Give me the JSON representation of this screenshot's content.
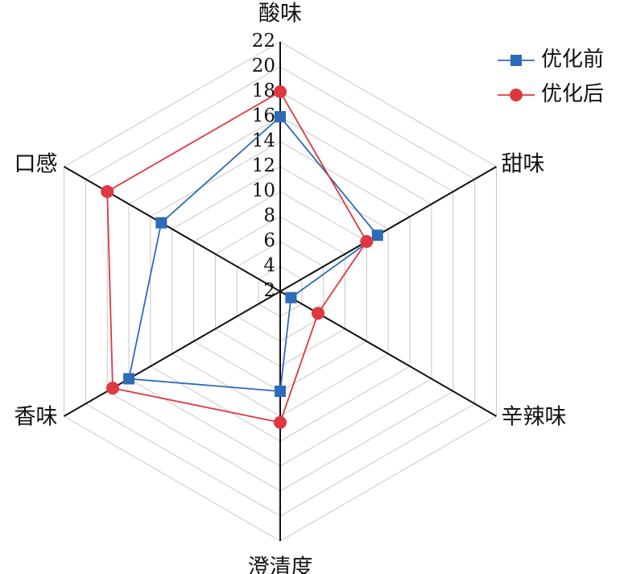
{
  "chart_data": {
    "type": "radar",
    "categories": [
      "酸味",
      "甜味",
      "辛辣味",
      "澄清度",
      "香味",
      "口感"
    ],
    "series": [
      {
        "name": "优化前",
        "color": "#2e6bb8",
        "marker": "square",
        "values": [
          16,
          11,
          3,
          10,
          16,
          13
        ]
      },
      {
        "name": "优化后",
        "color": "#e0383f",
        "marker": "circle",
        "values": [
          18,
          10,
          5.5,
          12.5,
          17.5,
          18
        ]
      }
    ],
    "rlim": [
      2,
      22
    ],
    "rticks": [
      2,
      4,
      6,
      8,
      10,
      12,
      14,
      16,
      18,
      20,
      22
    ],
    "grid": true,
    "legend": "top-right"
  }
}
